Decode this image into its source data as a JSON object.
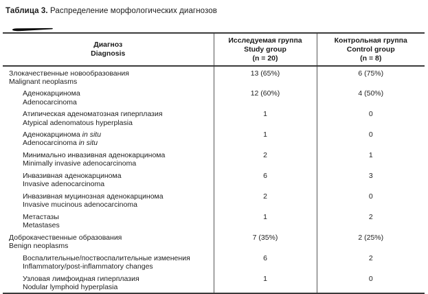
{
  "title": {
    "label": "Таблица 3.",
    "text": "Распределение морфологических диагнозов"
  },
  "table": {
    "columns": [
      {
        "ru": "Диагноз",
        "en": "Diagnosis",
        "n": ""
      },
      {
        "ru": "Исследуемая группа",
        "en": "Study group",
        "n": "(n = 20)"
      },
      {
        "ru": "Контрольная группа",
        "en": "Control group",
        "n": "(n = 8)"
      }
    ],
    "rows": [
      {
        "ru": "Злокачественные новообразования",
        "en": "Malignant neoplasms",
        "level": 0,
        "study": "13 (65%)",
        "control": "6 (75%)"
      },
      {
        "ru": "Аденокарцинома",
        "en": "Adenocarcinoma",
        "level": 1,
        "study": "12 (60%)",
        "control": "4 (50%)"
      },
      {
        "ru": "Атипическая аденоматозная гиперплазия",
        "en": "Atypical adenomatous hyperplasia",
        "level": 1,
        "study": "1",
        "control": "0"
      },
      {
        "ru": "Аденокарцинома",
        "ru_italic": "in situ",
        "en": "Adenocarcinoma",
        "en_italic": "in situ",
        "level": 1,
        "study": "1",
        "control": "0"
      },
      {
        "ru": "Минимально инвазивная аденокарцинома",
        "en": "Minimally invasive adenocarcinoma",
        "level": 1,
        "study": "2",
        "control": "1"
      },
      {
        "ru": "Инвазивная аденокарцинома",
        "en": "Invasive adenocarcinoma",
        "level": 1,
        "study": "6",
        "control": "3"
      },
      {
        "ru": "Инвазивная муцинозная аденокарцинома",
        "en": "Invasive mucinous adenocarcinoma",
        "level": 1,
        "study": "2",
        "control": "0"
      },
      {
        "ru": "Метастазы",
        "en": "Metastases",
        "level": 1,
        "study": "1",
        "control": "2"
      },
      {
        "ru": "Доброкачественные образования",
        "en": "Benign neoplasms",
        "level": 0,
        "study": "7 (35%)",
        "control": "2 (25%)"
      },
      {
        "ru": "Воспалительные/поствоспалительные изменения",
        "en": "Inflammatory/post-inflammatory changes",
        "level": 1,
        "study": "6",
        "control": "2"
      },
      {
        "ru": "Узловая лимфоидная гиперплазия",
        "en": "Nodular lymphoid hyperplasia",
        "level": 1,
        "study": "1",
        "control": "0"
      }
    ]
  },
  "colors": {
    "text": "#1d1d1d",
    "rule_horizontal": "#3a3a3a",
    "rule_vertical": "#555555",
    "background": "#ffffff"
  }
}
